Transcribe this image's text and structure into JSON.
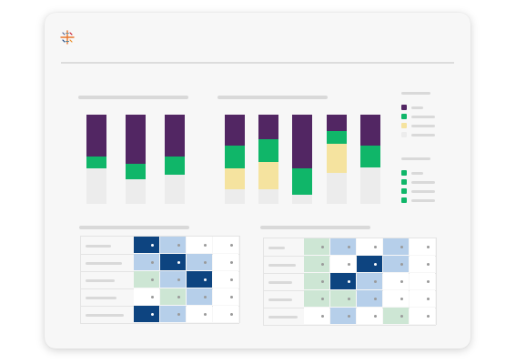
{
  "icons": {
    "logo": "tableau-logo-icon"
  },
  "colors": {
    "purple": "#522663",
    "green": "#10b669",
    "yellow": "#f5e39f",
    "grey": "#ececec",
    "navy": "#0d4480",
    "lightBlue": "#b6cfea",
    "mint": "#cde6d4",
    "white": "#ffffff"
  },
  "legend1": [
    "purple",
    "green",
    "yellow",
    "grey"
  ],
  "legend2": [
    "green",
    "green",
    "green",
    "green"
  ],
  "chart_data": [
    {
      "type": "bar",
      "categories": [
        "",
        "",
        ""
      ],
      "series": [
        {
          "color": "purple",
          "values": [
            47,
            55,
            47
          ]
        },
        {
          "color": "green",
          "values": [
            13,
            17,
            20
          ]
        },
        {
          "color": "grey",
          "values": [
            40,
            28,
            33
          ]
        }
      ],
      "ylim": [
        0,
        100
      ]
    },
    {
      "type": "bar",
      "categories": [
        "",
        "",
        "",
        "",
        ""
      ],
      "series": [
        {
          "color": "purple",
          "values": [
            35,
            28,
            60,
            18,
            35
          ]
        },
        {
          "color": "green",
          "values": [
            25,
            25,
            30,
            15,
            24
          ]
        },
        {
          "color": "yellow",
          "values": [
            24,
            31,
            0,
            32,
            0
          ]
        },
        {
          "color": "grey",
          "values": [
            16,
            16,
            10,
            35,
            41
          ]
        }
      ],
      "ylim": [
        0,
        100
      ]
    },
    {
      "type": "heatmap",
      "rows": 5,
      "cols": 4,
      "values": [
        [
          "navy",
          "lightBlue",
          "white",
          "white"
        ],
        [
          "lightBlue",
          "navy",
          "lightBlue",
          "white"
        ],
        [
          "mint",
          "lightBlue",
          "navy",
          "white"
        ],
        [
          "white",
          "mint",
          "lightBlue",
          "white"
        ],
        [
          "navy",
          "lightBlue",
          "white",
          "white"
        ]
      ]
    },
    {
      "type": "heatmap",
      "rows": 5,
      "cols": 5,
      "values": [
        [
          "mint",
          "lightBlue",
          "white",
          "lightBlue",
          "white"
        ],
        [
          "mint",
          "white",
          "navy",
          "lightBlue",
          "white"
        ],
        [
          "mint",
          "navy",
          "lightBlue",
          "white",
          "white"
        ],
        [
          "mint",
          "mint",
          "lightBlue",
          "white",
          "white"
        ],
        [
          "white",
          "lightBlue",
          "white",
          "mint",
          "white"
        ]
      ]
    }
  ]
}
